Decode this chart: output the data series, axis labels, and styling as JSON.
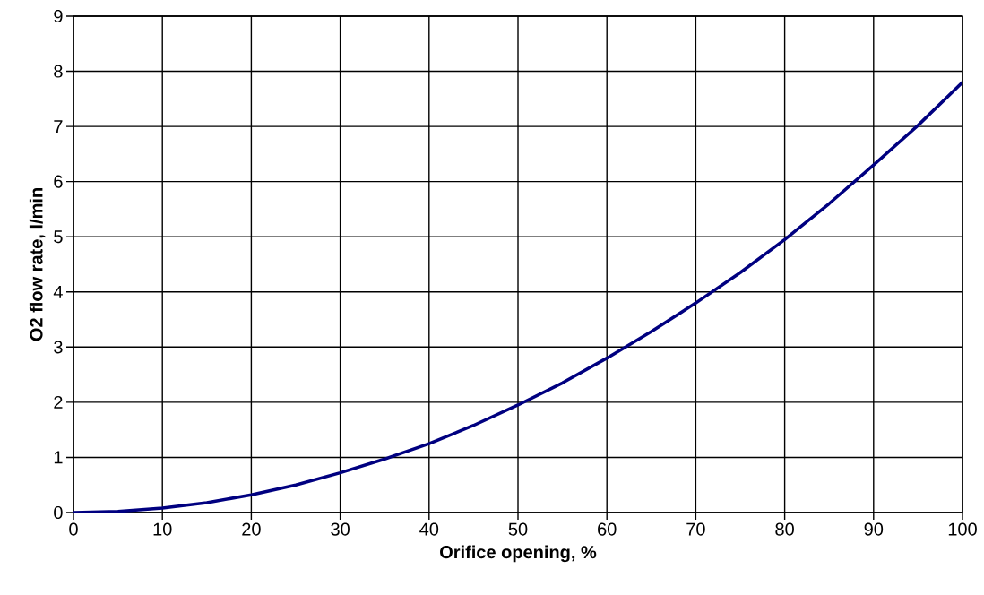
{
  "chart_data": {
    "type": "line",
    "xlabel": "Orifice opening, %",
    "ylabel": "O2 flow rate, l/min",
    "x": [
      0,
      5,
      10,
      15,
      20,
      25,
      30,
      35,
      40,
      45,
      50,
      55,
      60,
      65,
      70,
      75,
      80,
      85,
      90,
      95,
      100
    ],
    "series": [
      {
        "color": "#000080",
        "values": [
          0,
          0.02,
          0.08,
          0.18,
          0.32,
          0.5,
          0.72,
          0.97,
          1.25,
          1.58,
          1.95,
          2.35,
          2.8,
          3.28,
          3.8,
          4.35,
          4.95,
          5.6,
          6.3,
          7.02,
          7.8
        ]
      }
    ],
    "xlim": [
      0,
      100
    ],
    "ylim": [
      0,
      9
    ],
    "xticks": [
      0,
      10,
      20,
      30,
      40,
      50,
      60,
      70,
      80,
      90,
      100
    ],
    "yticks": [
      0,
      1,
      2,
      3,
      4,
      5,
      6,
      7,
      8,
      9
    ],
    "grid": true,
    "marker": "none",
    "line_style": "solid"
  }
}
